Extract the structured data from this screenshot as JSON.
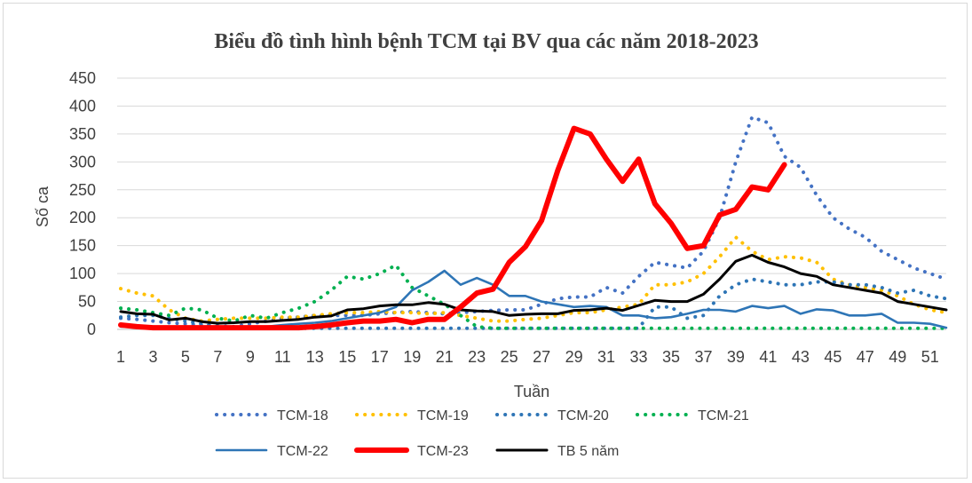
{
  "chart_data": {
    "type": "line",
    "title": "Biểu đồ tình hình bệnh TCM tại BV qua các năm 2018-2023",
    "xlabel": "Tuần",
    "ylabel": "Số ca",
    "ylim": [
      0,
      450
    ],
    "yticks": [
      0,
      50,
      100,
      150,
      200,
      250,
      300,
      350,
      400,
      450
    ],
    "xlim": [
      1,
      52
    ],
    "xticks": [
      1,
      3,
      5,
      7,
      9,
      11,
      13,
      15,
      17,
      19,
      21,
      23,
      25,
      27,
      29,
      31,
      33,
      35,
      37,
      39,
      41,
      43,
      45,
      47,
      49,
      51
    ],
    "grid": "horizontal",
    "legend_position": "bottom",
    "series": [
      {
        "name": "TCM-18",
        "color": "#4472C4",
        "style": "dotted",
        "x": [
          1,
          2,
          3,
          4,
          5,
          6,
          7,
          8,
          9,
          10,
          11,
          12,
          13,
          14,
          15,
          16,
          17,
          18,
          19,
          20,
          21,
          22,
          23,
          24,
          25,
          26,
          27,
          28,
          29,
          30,
          31,
          32,
          33,
          34,
          35,
          36,
          37,
          38,
          39,
          40,
          41,
          42,
          43,
          44,
          45,
          46,
          47,
          48,
          49,
          50,
          51,
          52
        ],
        "values": [
          20,
          18,
          15,
          12,
          10,
          8,
          6,
          5,
          10,
          15,
          20,
          22,
          25,
          25,
          25,
          25,
          28,
          30,
          32,
          30,
          28,
          30,
          32,
          34,
          35,
          35,
          45,
          55,
          58,
          58,
          75,
          65,
          95,
          120,
          115,
          110,
          140,
          200,
          300,
          380,
          370,
          310,
          290,
          240,
          200,
          180,
          165,
          140,
          125,
          110,
          100,
          90
        ]
      },
      {
        "name": "TCM-19",
        "color": "#FFC000",
        "style": "dotted",
        "x": [
          1,
          2,
          3,
          4,
          5,
          6,
          7,
          8,
          9,
          10,
          11,
          12,
          13,
          14,
          15,
          16,
          17,
          18,
          19,
          20,
          21,
          22,
          23,
          24,
          25,
          26,
          27,
          28,
          29,
          30,
          31,
          32,
          33,
          34,
          35,
          36,
          37,
          38,
          39,
          40,
          41,
          42,
          43,
          44,
          45,
          46,
          47,
          48,
          49,
          50,
          51,
          52
        ],
        "values": [
          73,
          65,
          60,
          35,
          20,
          15,
          18,
          20,
          20,
          20,
          22,
          22,
          25,
          28,
          30,
          30,
          32,
          30,
          30,
          28,
          30,
          25,
          20,
          15,
          15,
          18,
          20,
          25,
          30,
          30,
          35,
          40,
          45,
          80,
          80,
          85,
          100,
          130,
          165,
          140,
          125,
          130,
          128,
          120,
          90,
          80,
          75,
          70,
          60,
          45,
          35,
          30
        ]
      },
      {
        "name": "TCM-20",
        "color": "#2E75B6",
        "style": "dotted",
        "x": [
          1,
          2,
          3,
          4,
          5,
          6,
          7,
          8,
          9,
          10,
          11,
          12,
          13,
          14,
          15,
          16,
          17,
          18,
          19,
          20,
          21,
          22,
          23,
          24,
          25,
          26,
          27,
          28,
          29,
          30,
          31,
          32,
          33,
          34,
          35,
          36,
          37,
          38,
          39,
          40,
          41,
          42,
          43,
          44,
          45,
          46,
          47,
          48,
          49,
          50,
          51,
          52
        ],
        "values": [
          22,
          25,
          25,
          20,
          15,
          10,
          5,
          3,
          2,
          2,
          2,
          2,
          2,
          2,
          2,
          2,
          2,
          2,
          2,
          2,
          2,
          2,
          2,
          2,
          2,
          2,
          2,
          2,
          2,
          2,
          2,
          2,
          2,
          40,
          40,
          20,
          25,
          60,
          80,
          90,
          85,
          80,
          80,
          85,
          85,
          80,
          80,
          75,
          65,
          70,
          60,
          55
        ]
      },
      {
        "name": "TCM-21",
        "color": "#00B050",
        "style": "dotted",
        "x": [
          1,
          2,
          3,
          4,
          5,
          6,
          7,
          8,
          9,
          10,
          11,
          12,
          13,
          14,
          15,
          16,
          17,
          18,
          19,
          20,
          21,
          22,
          23,
          24,
          25,
          26,
          27,
          28,
          29,
          30,
          31,
          32,
          33,
          34,
          35,
          36,
          37,
          38,
          39,
          40,
          41,
          42,
          43,
          44,
          45,
          46,
          47,
          48,
          49,
          50,
          51,
          52
        ],
        "values": [
          38,
          35,
          30,
          25,
          38,
          35,
          20,
          15,
          25,
          20,
          30,
          38,
          50,
          70,
          95,
          90,
          100,
          115,
          75,
          60,
          45,
          25,
          5,
          2,
          2,
          2,
          2,
          2,
          2,
          2,
          2,
          2,
          2,
          2,
          2,
          2,
          2,
          2,
          2,
          2,
          2,
          2,
          2,
          2,
          2,
          2,
          2,
          2,
          2,
          2,
          2,
          2
        ]
      },
      {
        "name": "TCM-22",
        "color": "#2E75B6",
        "style": "solid",
        "x": [
          1,
          2,
          3,
          4,
          5,
          6,
          7,
          8,
          9,
          10,
          11,
          12,
          13,
          14,
          15,
          16,
          17,
          18,
          19,
          20,
          21,
          22,
          23,
          24,
          25,
          26,
          27,
          28,
          29,
          30,
          31,
          32,
          33,
          34,
          35,
          36,
          37,
          38,
          39,
          40,
          41,
          42,
          43,
          44,
          45,
          46,
          47,
          48,
          49,
          50,
          51,
          52
        ],
        "values": [
          5,
          5,
          5,
          5,
          5,
          5,
          5,
          5,
          5,
          5,
          8,
          10,
          12,
          15,
          20,
          25,
          30,
          40,
          70,
          85,
          105,
          80,
          92,
          80,
          60,
          60,
          50,
          45,
          40,
          42,
          40,
          25,
          25,
          20,
          22,
          28,
          35,
          35,
          32,
          42,
          38,
          42,
          28,
          36,
          34,
          25,
          25,
          28,
          12,
          12,
          10,
          3
        ]
      },
      {
        "name": "TCM-23",
        "color": "#FF0000",
        "style": "solid",
        "x": [
          1,
          2,
          3,
          4,
          5,
          6,
          7,
          8,
          9,
          10,
          11,
          12,
          13,
          14,
          15,
          16,
          17,
          18,
          19,
          20,
          21,
          22,
          23,
          24,
          25,
          26,
          27,
          28,
          29,
          30,
          31,
          32,
          33,
          34,
          35,
          36,
          37,
          38,
          39,
          40,
          41,
          42
        ],
        "values": [
          8,
          5,
          3,
          3,
          3,
          3,
          3,
          3,
          3,
          3,
          3,
          3,
          5,
          8,
          12,
          15,
          15,
          18,
          12,
          18,
          18,
          40,
          65,
          72,
          120,
          148,
          195,
          285,
          360,
          350,
          305,
          265,
          305,
          225,
          190,
          145,
          150,
          205,
          215,
          255,
          250,
          295
        ]
      },
      {
        "name": "TB 5 năm",
        "color": "#000000",
        "style": "solid",
        "x": [
          1,
          2,
          3,
          4,
          5,
          6,
          7,
          8,
          9,
          10,
          11,
          12,
          13,
          14,
          15,
          16,
          17,
          18,
          19,
          20,
          21,
          22,
          23,
          24,
          25,
          26,
          27,
          28,
          29,
          30,
          31,
          32,
          33,
          34,
          35,
          36,
          37,
          38,
          39,
          40,
          41,
          42,
          43,
          44,
          45,
          46,
          47,
          48,
          49,
          50,
          51,
          52
        ],
        "values": [
          32,
          28,
          27,
          17,
          20,
          14,
          11,
          12,
          14,
          14,
          16,
          18,
          22,
          24,
          35,
          37,
          42,
          44,
          44,
          48,
          45,
          35,
          33,
          32,
          25,
          27,
          28,
          28,
          34,
          35,
          38,
          34,
          43,
          52,
          50,
          50,
          63,
          90,
          122,
          133,
          120,
          112,
          100,
          95,
          80,
          75,
          70,
          65,
          50,
          45,
          40,
          35
        ]
      }
    ]
  }
}
